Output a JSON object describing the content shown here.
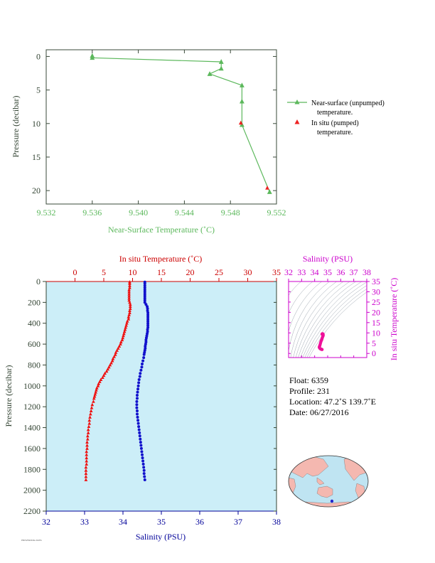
{
  "info": {
    "float": "Float:  6359",
    "profile": "Profile:  231",
    "location": "Location:  47.2˚S  139.7˚E",
    "date": "Date:  06/27/2016"
  },
  "footer": "PROVISIONAL DATA",
  "chart_data": [
    {
      "type": "line",
      "title": "",
      "xlabel": "Near-Surface Temperature (˚C)",
      "ylabel": "Pressure (decibar)",
      "xlim": [
        9.532,
        9.552
      ],
      "ylim": [
        22,
        -1
      ],
      "xticks": [
        "9.532",
        "9.536",
        "9.540",
        "9.544",
        "9.548",
        "9.552"
      ],
      "yticks": [
        "0",
        "5",
        "10",
        "15",
        "20"
      ],
      "colors": {
        "near_surface": "#5cb85c",
        "in_situ": "#ee2222",
        "axis": "#3a4a3a"
      },
      "legend": {
        "position": "right",
        "near_surface_line1": "Near-surface (unpumped)",
        "near_surface_line2": "temperature.",
        "in_situ_line1": "In situ (pumped)",
        "in_situ_line2": "temperature."
      },
      "series": [
        {
          "key": "near_surface",
          "x": [
            9.536,
            9.536,
            9.5472,
            9.5472,
            9.5462,
            9.549,
            9.549,
            9.549,
            9.5514
          ],
          "y": [
            -0.1,
            0.2,
            0.8,
            1.8,
            2.6,
            4.3,
            6.7,
            10.2,
            20.2
          ]
        },
        {
          "key": "in_situ",
          "x": [
            9.5489,
            9.5512
          ],
          "y": [
            9.9,
            19.6
          ]
        }
      ]
    },
    {
      "type": "scatter",
      "title": "",
      "top_xlabel": "In situ Temperature (˚C)",
      "bottom_xlabel": "Salinity (PSU)",
      "ylabel": "Pressure (decibar)",
      "temp_lim": [
        -5,
        35
      ],
      "sal_lim": [
        32,
        38
      ],
      "ylim": [
        0,
        2200
      ],
      "temp_ticks": [
        "0",
        "5",
        "10",
        "15",
        "20",
        "25",
        "30",
        "35"
      ],
      "sal_ticks": [
        "32",
        "33",
        "34",
        "35",
        "36",
        "37",
        "38"
      ],
      "yticks": [
        "0",
        "200",
        "400",
        "600",
        "800",
        "1000",
        "1200",
        "1400",
        "1600",
        "1800",
        "2000",
        "2200"
      ],
      "colors": {
        "temperature": "#ee1111",
        "salinity": "#1111cc",
        "background": "#cceef8",
        "temp_axis": "#cc0000",
        "sal_axis": "#000099",
        "pressure_axis": "#334433"
      },
      "temperature": {
        "p": [
          5,
          20,
          40,
          60,
          80,
          100,
          120,
          140,
          160,
          180,
          200,
          220,
          240,
          260,
          280,
          300,
          320,
          340,
          360,
          380,
          400,
          420,
          440,
          460,
          480,
          500,
          520,
          540,
          560,
          580,
          600,
          620,
          640,
          660,
          680,
          700,
          720,
          740,
          760,
          780,
          800,
          820,
          840,
          860,
          880,
          900,
          920,
          940,
          960,
          980,
          1000,
          1020,
          1040,
          1060,
          1080,
          1100,
          1120,
          1150,
          1180,
          1210,
          1240,
          1270,
          1300,
          1330,
          1360,
          1390,
          1420,
          1450,
          1480,
          1510,
          1540,
          1570,
          1600,
          1630,
          1660,
          1690,
          1720,
          1750,
          1780,
          1810,
          1840,
          1870,
          1900
        ],
        "t": [
          9.5,
          9.5,
          9.5,
          9.5,
          9.4,
          9.4,
          9.4,
          9.4,
          9.4,
          9.4,
          9.5,
          9.6,
          9.6,
          9.6,
          9.5,
          9.5,
          9.4,
          9.3,
          9.3,
          9.1,
          9.0,
          8.9,
          8.8,
          8.7,
          8.6,
          8.5,
          8.4,
          8.3,
          8.2,
          8.0,
          7.9,
          7.7,
          7.5,
          7.3,
          7.1,
          7.0,
          6.8,
          6.6,
          6.5,
          6.3,
          6.1,
          5.9,
          5.7,
          5.5,
          5.2,
          5.0,
          4.8,
          4.5,
          4.3,
          4.1,
          4.0,
          3.8,
          3.7,
          3.6,
          3.5,
          3.4,
          3.3,
          3.2,
          3.0,
          2.9,
          2.8,
          2.7,
          2.6,
          2.5,
          2.5,
          2.4,
          2.3,
          2.3,
          2.2,
          2.2,
          2.1,
          2.1,
          2.1,
          2.0,
          2.0,
          2.0,
          2.0,
          2.0,
          1.9,
          1.9,
          1.9,
          1.9,
          1.9
        ]
      },
      "salinity": {
        "p": [
          5,
          20,
          40,
          60,
          80,
          100,
          120,
          140,
          160,
          180,
          200,
          220,
          240,
          260,
          280,
          300,
          320,
          340,
          360,
          380,
          400,
          420,
          440,
          460,
          480,
          500,
          520,
          540,
          560,
          580,
          600,
          620,
          640,
          660,
          680,
          700,
          730,
          760,
          790,
          820,
          850,
          880,
          910,
          940,
          970,
          1000,
          1030,
          1060,
          1090,
          1120,
          1150,
          1180,
          1210,
          1240,
          1270,
          1300,
          1330,
          1360,
          1390,
          1420,
          1450,
          1480,
          1510,
          1540,
          1570,
          1600,
          1630,
          1660,
          1690,
          1720,
          1750,
          1780,
          1810,
          1840,
          1870,
          1900
        ],
        "s": [
          34.57,
          34.57,
          34.57,
          34.57,
          34.57,
          34.57,
          34.57,
          34.57,
          34.57,
          34.57,
          34.57,
          34.6,
          34.63,
          34.64,
          34.64,
          34.65,
          34.65,
          34.65,
          34.65,
          34.65,
          34.65,
          34.65,
          34.65,
          34.64,
          34.64,
          34.63,
          34.62,
          34.61,
          34.6,
          34.6,
          34.59,
          34.58,
          34.58,
          34.57,
          34.56,
          34.55,
          34.54,
          34.52,
          34.5,
          34.49,
          34.47,
          34.45,
          34.44,
          34.42,
          34.41,
          34.4,
          34.39,
          34.38,
          34.37,
          34.37,
          34.36,
          34.36,
          34.36,
          34.37,
          34.37,
          34.38,
          34.39,
          34.4,
          34.41,
          34.42,
          34.43,
          34.44,
          34.45,
          34.46,
          34.47,
          34.48,
          34.49,
          34.5,
          34.51,
          34.52,
          34.53,
          34.54,
          34.55,
          34.55,
          34.56,
          34.57
        ]
      }
    },
    {
      "type": "scatter",
      "title": "",
      "top_xlabel": "Salinity (PSU)",
      "right_ylabel": "In situ Temperature (˚C)",
      "xlim": [
        32,
        38
      ],
      "ylim": [
        -2,
        35
      ],
      "xticks": [
        "32",
        "33",
        "34",
        "35",
        "36",
        "37",
        "38"
      ],
      "yticks": [
        "0",
        "5",
        "10",
        "15",
        "20",
        "25",
        "30",
        "35"
      ],
      "colors": {
        "points": "#ee1199",
        "axis": "#cc00cc",
        "contour": "#5a6a7a"
      },
      "points": {
        "s": [
          34.57,
          34.57,
          34.6,
          34.64,
          34.65,
          34.65,
          34.65,
          34.64,
          34.62,
          34.6,
          34.58,
          34.56,
          34.54,
          34.5,
          34.47,
          34.44,
          34.41,
          34.39,
          34.37,
          34.36,
          34.36,
          34.38,
          34.4,
          34.43,
          34.46,
          34.49,
          34.52,
          34.55,
          34.57
        ],
        "t": [
          9.5,
          9.4,
          9.6,
          9.5,
          9.3,
          9.0,
          8.7,
          8.5,
          8.2,
          7.9,
          7.5,
          7.1,
          6.6,
          6.1,
          5.5,
          4.8,
          4.1,
          3.7,
          3.4,
          3.1,
          2.9,
          2.7,
          2.5,
          2.3,
          2.2,
          2.1,
          2.0,
          2.0,
          1.9
        ]
      }
    }
  ],
  "map": {
    "land_color": "#f4b8b0",
    "ocean_color": "#bfe4f2",
    "marker_color": "#2222cc"
  }
}
